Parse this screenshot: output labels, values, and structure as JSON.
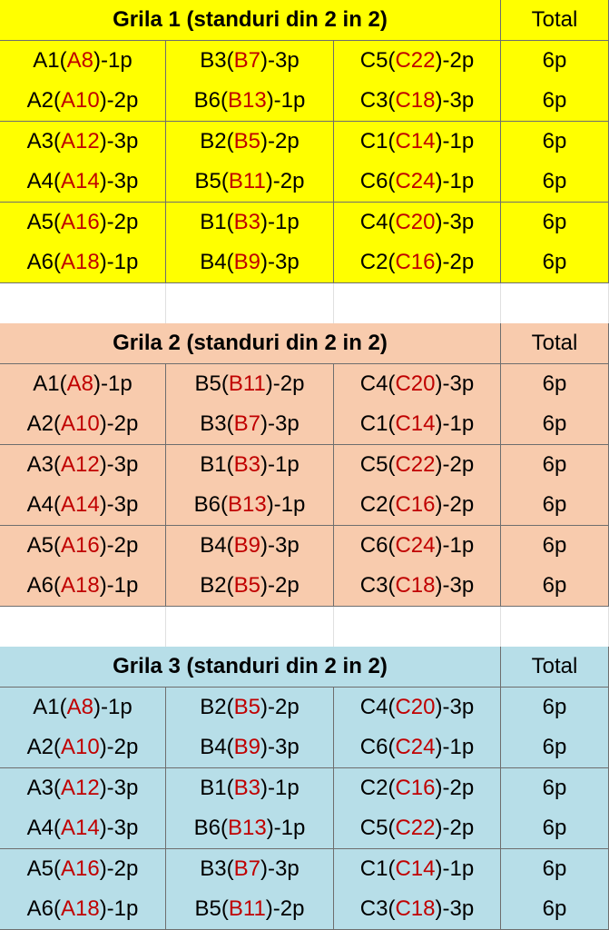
{
  "grids": [
    {
      "title": "Grila 1 (standuri din 2 in 2)",
      "total_header": "Total",
      "rows": [
        {
          "cells": [
            [
              "A1(",
              "A8",
              ")-1p"
            ],
            [
              "B3(",
              "B7",
              ")-3p"
            ],
            [
              "C5(",
              "C22",
              ")-2p"
            ]
          ],
          "total": "6p"
        },
        {
          "cells": [
            [
              "A2(",
              "A10",
              ")-2p"
            ],
            [
              "B6(",
              "B13",
              ")-1p"
            ],
            [
              "C3(",
              "C18",
              ")-3p"
            ]
          ],
          "total": "6p"
        },
        {
          "cells": [
            [
              "A3(",
              "A12",
              ")-3p"
            ],
            [
              "B2(",
              "B5",
              ")-2p"
            ],
            [
              "C1(",
              "C14",
              ")-1p"
            ]
          ],
          "total": "6p"
        },
        {
          "cells": [
            [
              "A4(",
              "A14",
              ")-3p"
            ],
            [
              "B5(",
              "B11",
              ")-2p"
            ],
            [
              "C6(",
              "C24",
              ")-1p"
            ]
          ],
          "total": "6p"
        },
        {
          "cells": [
            [
              "A5(",
              "A16",
              ")-2p"
            ],
            [
              "B1(",
              "B3",
              ")-1p"
            ],
            [
              "C4(",
              "C20",
              ")-3p"
            ]
          ],
          "total": "6p"
        },
        {
          "cells": [
            [
              "A6(",
              "A18",
              ")-1p"
            ],
            [
              "B4(",
              "B9",
              ")-3p"
            ],
            [
              "C2(",
              "C16",
              ")-2p"
            ]
          ],
          "total": "6p"
        }
      ]
    },
    {
      "title": "Grila 2 (standuri din 2 in 2)",
      "total_header": "Total",
      "rows": [
        {
          "cells": [
            [
              "A1(",
              "A8",
              ")-1p"
            ],
            [
              "B5(",
              "B11",
              ")-2p"
            ],
            [
              "C4(",
              "C20",
              ")-3p"
            ]
          ],
          "total": "6p"
        },
        {
          "cells": [
            [
              "A2(",
              "A10",
              ")-2p"
            ],
            [
              "B3(",
              "B7",
              ")-3p"
            ],
            [
              "C1(",
              "C14",
              ")-1p"
            ]
          ],
          "total": "6p"
        },
        {
          "cells": [
            [
              "A3(",
              "A12",
              ")-3p"
            ],
            [
              "B1(",
              "B3",
              ")-1p"
            ],
            [
              "C5(",
              "C22",
              ")-2p"
            ]
          ],
          "total": "6p"
        },
        {
          "cells": [
            [
              "A4(",
              "A14",
              ")-3p"
            ],
            [
              "B6(",
              "B13",
              ")-1p"
            ],
            [
              "C2(",
              "C16",
              ")-2p"
            ]
          ],
          "total": "6p"
        },
        {
          "cells": [
            [
              "A5(",
              "A16",
              ")-2p"
            ],
            [
              "B4(",
              "B9",
              ")-3p"
            ],
            [
              "C6(",
              "C24",
              ")-1p"
            ]
          ],
          "total": "6p"
        },
        {
          "cells": [
            [
              "A6(",
              "A18",
              ")-1p"
            ],
            [
              "B2(",
              "B5",
              ")-2p"
            ],
            [
              "C3(",
              "C18",
              ")-3p"
            ]
          ],
          "total": "6p"
        }
      ]
    },
    {
      "title": "Grila 3 (standuri din 2 in 2)",
      "total_header": "Total",
      "rows": [
        {
          "cells": [
            [
              "A1(",
              "A8",
              ")-1p"
            ],
            [
              "B2(",
              "B5",
              ")-2p"
            ],
            [
              "C4(",
              "C20",
              ")-3p"
            ]
          ],
          "total": "6p"
        },
        {
          "cells": [
            [
              "A2(",
              "A10",
              ")-2p"
            ],
            [
              "B4(",
              "B9",
              ")-3p"
            ],
            [
              "C6(",
              "C24",
              ")-1p"
            ]
          ],
          "total": "6p"
        },
        {
          "cells": [
            [
              "A3(",
              "A12",
              ")-3p"
            ],
            [
              "B1(",
              "B3",
              ")-1p"
            ],
            [
              "C2(",
              "C16",
              ")-2p"
            ]
          ],
          "total": "6p"
        },
        {
          "cells": [
            [
              "A4(",
              "A14",
              ")-3p"
            ],
            [
              "B6(",
              "B13",
              ")-1p"
            ],
            [
              "C5(",
              "C22",
              ")-2p"
            ]
          ],
          "total": "6p"
        },
        {
          "cells": [
            [
              "A5(",
              "A16",
              ")-2p"
            ],
            [
              "B3(",
              "B7",
              ")-3p"
            ],
            [
              "C1(",
              "C14",
              ")-1p"
            ]
          ],
          "total": "6p"
        },
        {
          "cells": [
            [
              "A6(",
              "A18",
              ")-1p"
            ],
            [
              "B5(",
              "B11",
              ")-2p"
            ],
            [
              "C3(",
              "C18",
              ")-3p"
            ]
          ],
          "total": "6p"
        }
      ]
    }
  ]
}
